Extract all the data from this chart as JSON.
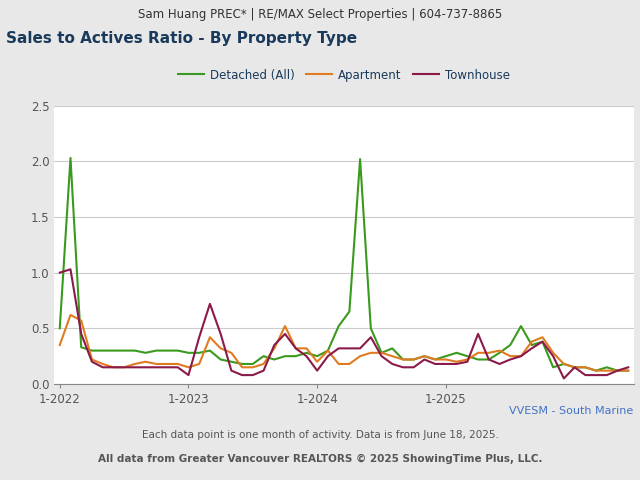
{
  "header": "Sam Huang PREC* | RE/MAX Select Properties | 604-737-8865",
  "title": "Sales to Actives Ratio - By Property Type",
  "footer1": "VVESM - South Marine",
  "footer2": "Each data point is one month of activity. Data is from June 18, 2025.",
  "footer3": "All data from Greater Vancouver REALTORS © 2025 ShowingTime Plus, LLC.",
  "legend": [
    "Detached (All)",
    "Apartment",
    "Townhouse"
  ],
  "colors": {
    "detached": "#3a9a1e",
    "apartment": "#e07b20",
    "townhouse": "#8b1a4a"
  },
  "x_ticks_labels": [
    "1-2022",
    "1-2023",
    "1-2024",
    "1-2025"
  ],
  "ylim": [
    0.0,
    2.5
  ],
  "yticks": [
    0.0,
    0.5,
    1.0,
    1.5,
    2.0,
    2.5
  ],
  "detached": [
    0.5,
    2.03,
    0.33,
    0.3,
    0.3,
    0.3,
    0.3,
    0.3,
    0.28,
    0.3,
    0.3,
    0.3,
    0.28,
    0.28,
    0.3,
    0.22,
    0.2,
    0.18,
    0.18,
    0.25,
    0.22,
    0.25,
    0.25,
    0.28,
    0.25,
    0.3,
    0.52,
    0.65,
    2.02,
    0.5,
    0.28,
    0.32,
    0.22,
    0.22,
    0.25,
    0.22,
    0.25,
    0.28,
    0.25,
    0.22,
    0.22,
    0.28,
    0.35,
    0.52,
    0.35,
    0.38,
    0.15,
    0.18,
    0.15,
    0.15,
    0.12,
    0.15,
    0.12,
    0.12
  ],
  "apartment": [
    0.35,
    0.62,
    0.57,
    0.22,
    0.18,
    0.15,
    0.15,
    0.18,
    0.2,
    0.18,
    0.18,
    0.18,
    0.15,
    0.18,
    0.42,
    0.32,
    0.28,
    0.15,
    0.15,
    0.18,
    0.32,
    0.52,
    0.32,
    0.32,
    0.2,
    0.3,
    0.18,
    0.18,
    0.25,
    0.28,
    0.28,
    0.25,
    0.22,
    0.22,
    0.25,
    0.22,
    0.22,
    0.2,
    0.22,
    0.28,
    0.28,
    0.3,
    0.25,
    0.25,
    0.38,
    0.42,
    0.28,
    0.18,
    0.15,
    0.15,
    0.12,
    0.12,
    0.12,
    0.12
  ],
  "townhouse": [
    1.0,
    1.03,
    0.45,
    0.2,
    0.15,
    0.15,
    0.15,
    0.15,
    0.15,
    0.15,
    0.15,
    0.15,
    0.08,
    0.42,
    0.72,
    0.45,
    0.12,
    0.08,
    0.08,
    0.12,
    0.35,
    0.45,
    0.32,
    0.25,
    0.12,
    0.25,
    0.32,
    0.32,
    0.32,
    0.42,
    0.25,
    0.18,
    0.15,
    0.15,
    0.22,
    0.18,
    0.18,
    0.18,
    0.2,
    0.45,
    0.22,
    0.18,
    0.22,
    0.25,
    0.32,
    0.38,
    0.25,
    0.05,
    0.15,
    0.08,
    0.08,
    0.08,
    0.12,
    0.15
  ],
  "background_color": "#e8e8e8",
  "plot_bg": "#ffffff",
  "header_bg": "#d0d0d0",
  "grid_color": "#cccccc",
  "title_color": "#1a3a5c",
  "footer_color1": "#4472c4",
  "footer_color2": "#555555",
  "header_color": "#333333"
}
